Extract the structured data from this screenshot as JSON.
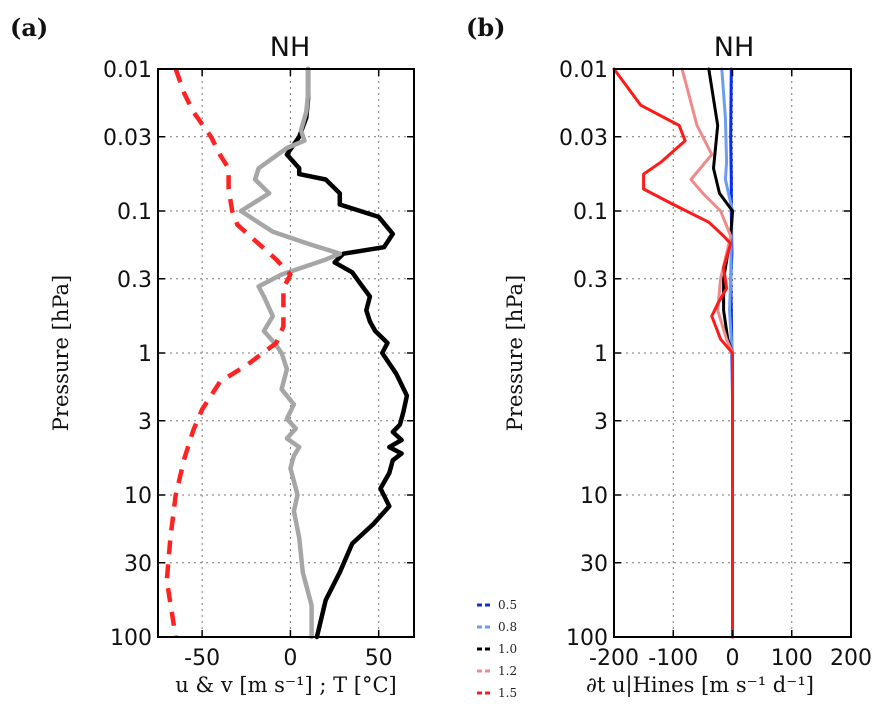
{
  "figure": {
    "panel_a_tag": "(a)",
    "panel_b_tag": "(b)"
  },
  "chart_data": [
    {
      "type": "line",
      "panel": "(a)",
      "title": "NH",
      "ylabel": "Pressure [hPa]",
      "xlabel": "u & v [m s⁻¹] ; T [°C]",
      "xlim": [
        -75,
        70
      ],
      "ylim": [
        100,
        0.01
      ],
      "y_scale": "log",
      "y_inverted": true,
      "grid": true,
      "xticks": [
        -50,
        0,
        50
      ],
      "xtick_labels": [
        "-50",
        "0",
        "50"
      ],
      "yticks": [
        0.01,
        0.03,
        0.1,
        0.3,
        1,
        3,
        10,
        30,
        100
      ],
      "ytick_labels": [
        "0.01",
        "0.03",
        "0.1",
        "0.3",
        "1",
        "3",
        "10",
        "30",
        "100"
      ],
      "series": [
        {
          "color": "#000000",
          "style": "solid",
          "points": [
            [
              10,
              0.01
            ],
            [
              10,
              0.016
            ],
            [
              9,
              0.022
            ],
            [
              5,
              0.03
            ],
            [
              -2,
              0.04
            ],
            [
              5,
              0.05
            ],
            [
              5,
              0.055
            ],
            [
              20,
              0.06
            ],
            [
              28,
              0.075
            ],
            [
              28,
              0.09
            ],
            [
              50,
              0.11
            ],
            [
              58,
              0.145
            ],
            [
              53,
              0.18
            ],
            [
              30,
              0.2
            ],
            [
              25,
              0.23
            ],
            [
              35,
              0.27
            ],
            [
              40,
              0.33
            ],
            [
              45,
              0.4
            ],
            [
              43,
              0.5
            ],
            [
              45,
              0.6
            ],
            [
              48,
              0.7
            ],
            [
              55,
              0.85
            ],
            [
              52,
              1
            ],
            [
              60,
              1.4
            ],
            [
              66,
              2
            ],
            [
              64,
              2.6
            ],
            [
              62,
              3.2
            ],
            [
              58,
              3.6
            ],
            [
              63,
              4.1
            ],
            [
              56,
              4.6
            ],
            [
              63,
              5.1
            ],
            [
              58,
              5.7
            ],
            [
              56,
              7
            ],
            [
              51,
              9
            ],
            [
              56,
              12
            ],
            [
              47,
              16
            ],
            [
              35,
              22
            ],
            [
              28,
              35
            ],
            [
              20,
              55
            ],
            [
              15,
              100
            ]
          ]
        },
        {
          "color": "#a6a6a6",
          "style": "solid",
          "points": [
            [
              10,
              0.01
            ],
            [
              10,
              0.015
            ],
            [
              9,
              0.02
            ],
            [
              6,
              0.027
            ],
            [
              8,
              0.032
            ],
            [
              -2,
              0.036
            ],
            [
              -18,
              0.05
            ],
            [
              -20,
              0.06
            ],
            [
              -12,
              0.075
            ],
            [
              -28,
              0.1
            ],
            [
              -10,
              0.14
            ],
            [
              10,
              0.17
            ],
            [
              28,
              0.2
            ],
            [
              20,
              0.22
            ],
            [
              -5,
              0.28
            ],
            [
              -18,
              0.34
            ],
            [
              -15,
              0.4
            ],
            [
              -10,
              0.55
            ],
            [
              -15,
              0.7
            ],
            [
              -9,
              0.85
            ],
            [
              -5,
              1
            ],
            [
              -2,
              1.3
            ],
            [
              -5,
              1.8
            ],
            [
              2,
              2.3
            ],
            [
              -2,
              2.9
            ],
            [
              3,
              3.4
            ],
            [
              -2,
              4
            ],
            [
              5,
              4.6
            ],
            [
              2,
              5.3
            ],
            [
              0,
              6.5
            ],
            [
              2,
              8
            ],
            [
              4,
              10
            ],
            [
              2,
              13
            ],
            [
              5,
              20
            ],
            [
              7,
              35
            ],
            [
              12,
              60
            ],
            [
              12,
              100
            ]
          ]
        },
        {
          "color": "#ff2222",
          "style": "dashed",
          "points": [
            [
              -65,
              0.01
            ],
            [
              -60,
              0.015
            ],
            [
              -55,
              0.02
            ],
            [
              -45,
              0.03
            ],
            [
              -40,
              0.04
            ],
            [
              -35,
              0.05
            ],
            [
              -35,
              0.07
            ],
            [
              -33,
              0.1
            ],
            [
              -30,
              0.125
            ],
            [
              -18,
              0.17
            ],
            [
              -8,
              0.22
            ],
            [
              0,
              0.28
            ],
            [
              -4,
              0.35
            ],
            [
              -4,
              0.5
            ],
            [
              -4,
              0.65
            ],
            [
              -8,
              0.85
            ],
            [
              -24,
              1.2
            ],
            [
              -40,
              1.6
            ],
            [
              -45,
              2
            ],
            [
              -50,
              2.5
            ],
            [
              -55,
              3.5
            ],
            [
              -60,
              5.5
            ],
            [
              -65,
              10
            ],
            [
              -68,
              20
            ],
            [
              -70,
              40
            ],
            [
              -65,
              100
            ]
          ]
        }
      ]
    },
    {
      "type": "line",
      "panel": "(b)",
      "title": "NH",
      "ylabel": "Pressure [hPa]",
      "xlabel": "∂t u|Hines [m s⁻¹ d⁻¹]",
      "xlim": [
        -200,
        200
      ],
      "ylim": [
        100,
        0.01
      ],
      "y_scale": "log",
      "y_inverted": true,
      "grid": true,
      "xticks": [
        -200,
        -100,
        0,
        100,
        200
      ],
      "xtick_labels": [
        "-200",
        "-100",
        "0",
        "100",
        "200"
      ],
      "yticks": [
        0.01,
        0.03,
        0.1,
        0.3,
        1,
        3,
        10,
        30,
        100
      ],
      "ytick_labels": [
        "0.01",
        "0.03",
        "0.1",
        "0.3",
        "1",
        "3",
        "10",
        "30",
        "100"
      ],
      "legend_position": "lower-left-outside",
      "series": [
        {
          "name": "0.5",
          "color": "#0a2cf0",
          "style": "solid",
          "points": [
            [
              -2,
              0.01
            ],
            [
              -3,
              0.03
            ],
            [
              -2,
              0.06
            ],
            [
              -2,
              0.1
            ],
            [
              -1,
              0.2
            ],
            [
              -3,
              0.3
            ],
            [
              -2,
              0.5
            ],
            [
              -1,
              1
            ],
            [
              0,
              2
            ],
            [
              0,
              100
            ]
          ]
        },
        {
          "name": "0.8",
          "color": "#6b9ef0",
          "style": "solid",
          "points": [
            [
              -18,
              0.01
            ],
            [
              -12,
              0.022
            ],
            [
              -10,
              0.045
            ],
            [
              -12,
              0.06
            ],
            [
              0,
              0.1
            ],
            [
              -2,
              0.15
            ],
            [
              -3,
              0.3
            ],
            [
              -5,
              0.5
            ],
            [
              -2,
              0.8
            ],
            [
              0,
              1
            ],
            [
              0,
              100
            ]
          ]
        },
        {
          "name": "1.0",
          "color": "#000000",
          "style": "solid",
          "points": [
            [
              -40,
              0.01
            ],
            [
              -25,
              0.025
            ],
            [
              -32,
              0.05
            ],
            [
              -22,
              0.075
            ],
            [
              0,
              0.1
            ],
            [
              -3,
              0.15
            ],
            [
              -15,
              0.3
            ],
            [
              -15,
              0.5
            ],
            [
              -8,
              0.8
            ],
            [
              0,
              1
            ],
            [
              0,
              100
            ]
          ]
        },
        {
          "name": "1.2",
          "color": "#f08a8a",
          "style": "solid",
          "points": [
            [
              -85,
              0.01
            ],
            [
              -60,
              0.025
            ],
            [
              -35,
              0.04
            ],
            [
              -70,
              0.06
            ],
            [
              -50,
              0.075
            ],
            [
              -20,
              0.1
            ],
            [
              -3,
              0.15
            ],
            [
              -20,
              0.3
            ],
            [
              -25,
              0.5
            ],
            [
              -10,
              0.8
            ],
            [
              0,
              1
            ],
            [
              0,
              100
            ]
          ]
        },
        {
          "name": "1.5",
          "color": "#ff1a1a",
          "style": "solid",
          "points": [
            [
              -200,
              0.01
            ],
            [
              -155,
              0.018
            ],
            [
              -90,
              0.025
            ],
            [
              -80,
              0.032
            ],
            [
              -120,
              0.045
            ],
            [
              -150,
              0.055
            ],
            [
              -150,
              0.07
            ],
            [
              -100,
              0.09
            ],
            [
              -40,
              0.12
            ],
            [
              -15,
              0.15
            ],
            [
              -3,
              0.17
            ],
            [
              -15,
              0.25
            ],
            [
              -10,
              0.35
            ],
            [
              -25,
              0.45
            ],
            [
              -35,
              0.55
            ],
            [
              -20,
              0.8
            ],
            [
              0,
              1
            ],
            [
              0,
              100
            ]
          ]
        }
      ]
    }
  ]
}
